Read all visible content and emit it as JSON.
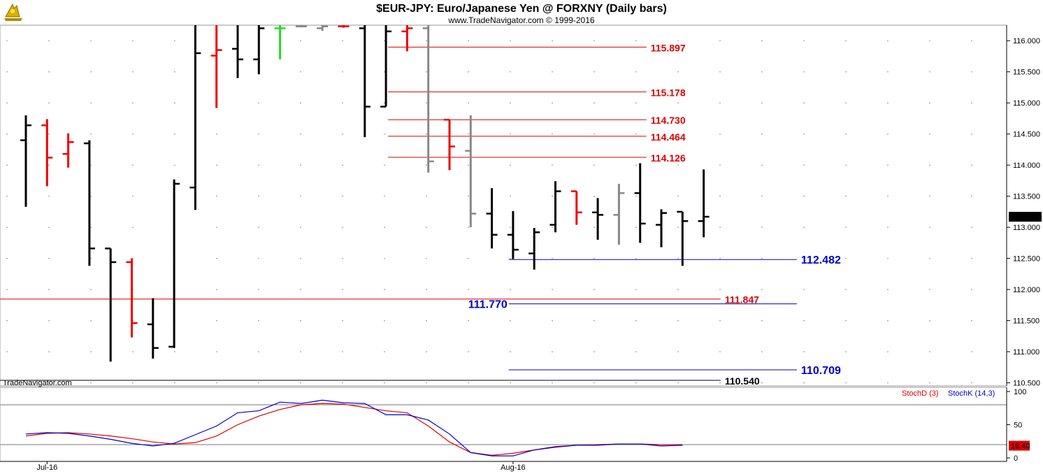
{
  "chart_data": {
    "type": "ohlc",
    "title": "$EUR-JPY:  Euro/Japanese Yen @ FORXNY  (Daily bars)",
    "copyright": "www.TradeNavigator.com © 1999-2016",
    "watermark": "TradeNavigator.com",
    "ylim": [
      110.45,
      116.25
    ],
    "y_ticks": [
      110.5,
      111.0,
      111.5,
      112.0,
      112.5,
      113.0,
      113.5,
      114.0,
      114.5,
      115.0,
      115.5,
      116.0
    ],
    "y_tick_labels": [
      "110.500",
      "111.000",
      "111.500",
      "112.000",
      "112.500",
      "113.000",
      "113.500",
      "114.000",
      "114.500",
      "115.000",
      "115.500",
      "116.000"
    ],
    "x_labels": [
      {
        "text": "Jul-16",
        "bar": 1
      },
      {
        "text": "Aug-16",
        "bar": 23
      }
    ],
    "current_price": "113.170",
    "colors": {
      "up": "#000000",
      "down": "#ee0000",
      "gray": "#888888",
      "green": "#22dd22",
      "resistance": "#dd0000",
      "support": "#0000cc",
      "neutral": "#000000"
    },
    "bars": [
      {
        "o": 114.4,
        "h": 114.8,
        "l": 113.33,
        "c": 114.64,
        "color": "black"
      },
      {
        "o": 114.64,
        "h": 114.74,
        "l": 113.66,
        "c": 114.12,
        "color": "red"
      },
      {
        "o": 114.18,
        "h": 114.51,
        "l": 113.96,
        "c": 114.37,
        "color": "red"
      },
      {
        "o": 114.35,
        "h": 114.4,
        "l": 112.38,
        "c": 112.66,
        "color": "black"
      },
      {
        "o": 112.66,
        "h": 112.66,
        "l": 110.84,
        "c": 112.44,
        "color": "black"
      },
      {
        "o": 112.44,
        "h": 112.5,
        "l": 111.23,
        "c": 111.46,
        "color": "red"
      },
      {
        "o": 111.44,
        "h": 111.86,
        "l": 110.89,
        "c": 111.06,
        "color": "black"
      },
      {
        "o": 111.08,
        "h": 113.77,
        "l": 111.06,
        "c": 113.7,
        "color": "black"
      },
      {
        "o": 113.64,
        "h": 116.3,
        "l": 113.28,
        "c": 115.8,
        "color": "black"
      },
      {
        "o": 115.76,
        "h": 116.3,
        "l": 114.92,
        "c": 115.85,
        "color": "red"
      },
      {
        "o": 115.87,
        "h": 116.3,
        "l": 115.4,
        "c": 115.7,
        "color": "black"
      },
      {
        "o": 115.7,
        "h": 116.3,
        "l": 115.46,
        "c": 116.2,
        "color": "black"
      },
      {
        "o": 116.2,
        "h": 116.25,
        "l": 115.7,
        "c": 116.2,
        "color": "green"
      },
      {
        "o": 116.23,
        "h": 116.3,
        "l": 116.22,
        "c": 116.23,
        "color": "gray"
      },
      {
        "o": 116.2,
        "h": 116.3,
        "l": 116.16,
        "c": 116.23,
        "color": "gray"
      },
      {
        "o": 116.23,
        "h": 116.3,
        "l": 116.21,
        "c": 116.23,
        "color": "red"
      },
      {
        "o": 116.2,
        "h": 116.3,
        "l": 114.45,
        "c": 114.94,
        "color": "black"
      },
      {
        "o": 114.94,
        "h": 116.3,
        "l": 114.94,
        "c": 116.15,
        "color": "black"
      },
      {
        "o": 116.15,
        "h": 116.3,
        "l": 115.83,
        "c": 116.2,
        "color": "red"
      },
      {
        "o": 116.2,
        "h": 116.3,
        "l": 113.88,
        "c": 114.06,
        "color": "gray"
      },
      {
        "o": 114.73,
        "h": 114.73,
        "l": 113.92,
        "c": 114.3,
        "color": "red"
      },
      {
        "o": 114.23,
        "h": 114.8,
        "l": 113.0,
        "c": 113.22,
        "color": "gray"
      },
      {
        "o": 113.22,
        "h": 113.63,
        "l": 112.66,
        "c": 112.88,
        "color": "black"
      },
      {
        "o": 112.88,
        "h": 113.26,
        "l": 112.49,
        "c": 112.64,
        "color": "black"
      },
      {
        "o": 112.58,
        "h": 112.99,
        "l": 112.32,
        "c": 112.92,
        "color": "black"
      },
      {
        "o": 113.04,
        "h": 113.74,
        "l": 112.92,
        "c": 113.58,
        "color": "black"
      },
      {
        "o": 113.58,
        "h": 113.58,
        "l": 113.04,
        "c": 113.24,
        "color": "red"
      },
      {
        "o": 113.24,
        "h": 113.47,
        "l": 112.8,
        "c": 113.2,
        "color": "black"
      },
      {
        "o": 113.2,
        "h": 113.7,
        "l": 112.72,
        "c": 113.55,
        "color": "gray"
      },
      {
        "o": 113.55,
        "h": 114.03,
        "l": 112.75,
        "c": 113.06,
        "color": "black"
      },
      {
        "o": 113.04,
        "h": 113.29,
        "l": 112.68,
        "c": 113.23,
        "color": "black"
      },
      {
        "o": 113.25,
        "h": 113.25,
        "l": 112.38,
        "c": 113.1,
        "color": "black"
      },
      {
        "o": 113.1,
        "h": 113.93,
        "l": 112.84,
        "c": 113.17,
        "color": "black"
      }
    ],
    "levels": [
      {
        "value": 115.897,
        "label": "115.897",
        "color": "#dd0000",
        "x_start_bar": 17.1,
        "x_end_bar": 29.3,
        "label_at": "end",
        "size": "normal"
      },
      {
        "value": 115.178,
        "label": "115.178",
        "color": "#dd0000",
        "x_start_bar": 17.1,
        "x_end_bar": 29.3,
        "label_at": "end",
        "size": "normal"
      },
      {
        "value": 114.73,
        "label": "114.730",
        "color": "#dd0000",
        "x_start_bar": 17.1,
        "x_end_bar": 29.3,
        "label_at": "end",
        "size": "normal"
      },
      {
        "value": 114.464,
        "label": "114.464",
        "color": "#dd0000",
        "x_start_bar": 17.1,
        "x_end_bar": 29.3,
        "label_at": "end",
        "size": "normal"
      },
      {
        "value": 114.126,
        "label": "114.126",
        "color": "#dd0000",
        "x_start_bar": 17.1,
        "x_end_bar": 29.3,
        "label_at": "end",
        "size": "normal"
      },
      {
        "value": 112.482,
        "label": "112.482",
        "color": "#0000cc",
        "x_start_bar": 22.8,
        "x_end_bar": 36.4,
        "label_at": "end",
        "size": "big"
      },
      {
        "value": 111.847,
        "label": "111.847",
        "color": "#dd0000",
        "x_start_bar": -1.4,
        "x_end_bar": 32.8,
        "label_at": "end",
        "size": "normal"
      },
      {
        "value": 111.77,
        "label": "111.770",
        "color": "#0000cc",
        "x_start_bar": 22.8,
        "x_end_bar": 36.4,
        "label_at": "start",
        "size": "big"
      },
      {
        "value": 110.709,
        "label": "110.709",
        "color": "#0000cc",
        "x_start_bar": 22.8,
        "x_end_bar": 36.4,
        "label_at": "end",
        "size": "big"
      },
      {
        "value": 110.54,
        "label": "110.540",
        "color": "#000000",
        "x_start_bar": -1.4,
        "x_end_bar": 32.8,
        "label_at": "end",
        "size": "normal"
      }
    ],
    "stochastic": {
      "ylim": [
        0,
        100
      ],
      "y_ticks": [
        0,
        50,
        100
      ],
      "y_tick_labels": [
        "0",
        "50",
        "100"
      ],
      "ref_lines": [
        20,
        80
      ],
      "current_value": "18.40",
      "legend": [
        {
          "text": "StochD (3)",
          "color": "#dd0000"
        },
        {
          "text": "StochK (14,3)",
          "color": "#0000cc"
        }
      ],
      "stochD": [
        33,
        37,
        38,
        36,
        33,
        29,
        24,
        21,
        23,
        33,
        50,
        63,
        73,
        80,
        82,
        81,
        76,
        71,
        68,
        48,
        24,
        8,
        4,
        7,
        12,
        16,
        19,
        20,
        21,
        21,
        20,
        20
      ],
      "stochK": [
        36,
        38,
        37,
        33,
        28,
        22,
        18,
        22,
        35,
        48,
        68,
        71,
        84,
        82,
        87,
        83,
        82,
        65,
        65,
        57,
        36,
        8,
        3,
        3,
        12,
        17,
        19,
        19,
        21,
        21,
        18,
        19
      ]
    }
  }
}
